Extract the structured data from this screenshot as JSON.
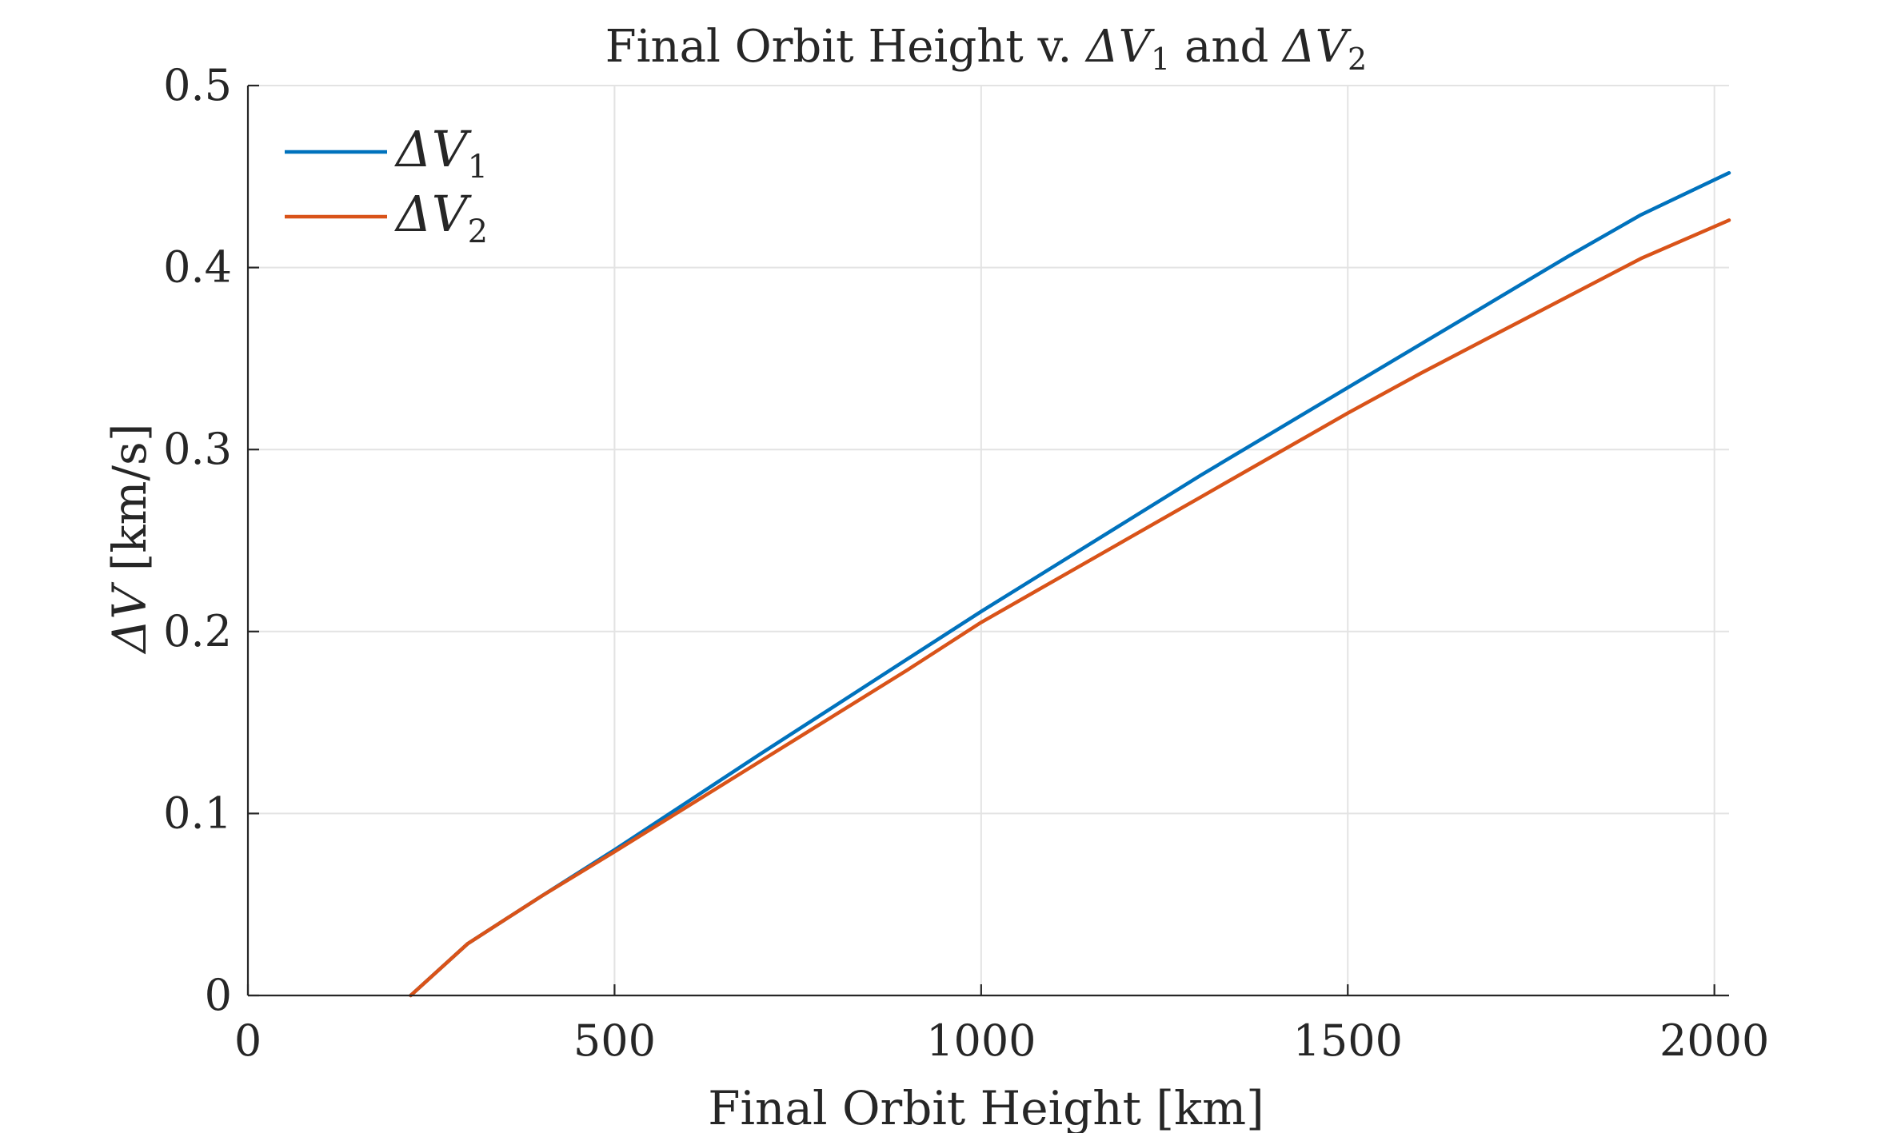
{
  "chart_data": {
    "type": "line",
    "title_prefix": "Final Orbit Height v. ",
    "title_sym1_base": "ΔV",
    "title_sym1_sub": "1",
    "title_mid": " and ",
    "title_sym2_base": "ΔV",
    "title_sym2_sub": "2",
    "xlabel": "Final Orbit Height [km]",
    "ylabel_sym": "ΔV",
    "ylabel_unit": " [km/s]",
    "xlim": [
      0,
      2020
    ],
    "ylim": [
      0,
      0.5
    ],
    "xticks": [
      0,
      500,
      1000,
      1500,
      2000
    ],
    "yticks": [
      0,
      0.1,
      0.2,
      0.3,
      0.4,
      0.5
    ],
    "xtick_labels": [
      "0",
      "500",
      "1000",
      "1500",
      "2000"
    ],
    "ytick_labels": [
      "0",
      "0.1",
      "0.2",
      "0.3",
      "0.4",
      "0.5"
    ],
    "grid": true,
    "legend_position": "top-left",
    "series": [
      {
        "name_base": "ΔV",
        "name_sub": "1",
        "color": "#0072BD",
        "x": [
          222,
          300,
          400,
          500,
          600,
          700,
          800,
          900,
          1000,
          1100,
          1200,
          1300,
          1400,
          1500,
          1600,
          1700,
          1800,
          1900,
          2020
        ],
        "y": [
          0,
          0.0285,
          0.0545,
          0.08,
          0.1065,
          0.133,
          0.159,
          0.185,
          0.211,
          0.236,
          0.261,
          0.286,
          0.31,
          0.334,
          0.358,
          0.382,
          0.406,
          0.429,
          0.452
        ]
      },
      {
        "name_base": "ΔV",
        "name_sub": "2",
        "color": "#D95319",
        "x": [
          222,
          300,
          400,
          500,
          600,
          700,
          800,
          900,
          1000,
          1100,
          1200,
          1300,
          1400,
          1500,
          1600,
          1700,
          1800,
          1900,
          2020
        ],
        "y": [
          0,
          0.0285,
          0.0545,
          0.079,
          0.104,
          0.129,
          0.154,
          0.179,
          0.205,
          0.228,
          0.251,
          0.274,
          0.297,
          0.32,
          0.342,
          0.363,
          0.384,
          0.405,
          0.426
        ]
      }
    ]
  }
}
